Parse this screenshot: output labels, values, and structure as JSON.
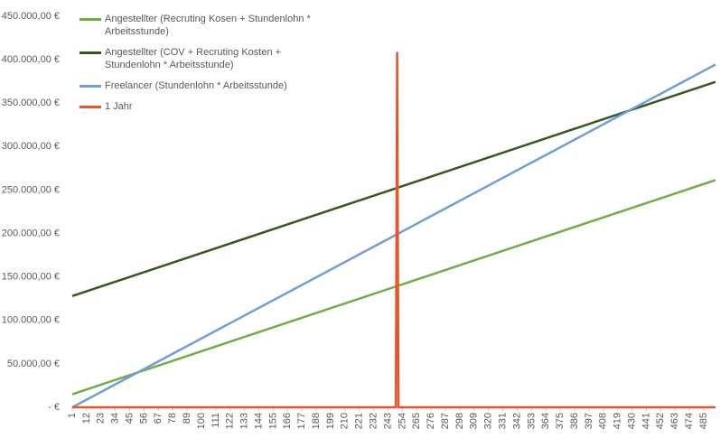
{
  "chart_data": {
    "type": "line",
    "x": [
      1,
      249,
      250,
      251,
      494
    ],
    "series": [
      {
        "name": "Angestellter (Recruting Kosen + Stundenlohn * Arbeitsstunde)",
        "color": "#70ad47",
        "values": [
          15000,
          139000,
          139500,
          140000,
          261500
        ]
      },
      {
        "name": "Angestellter (COV + Recruting Kosten + Stundenlohn * Arbeitsstunde)",
        "color": "#375623",
        "values": [
          128000,
          252000,
          252500,
          253000,
          374500
        ]
      },
      {
        "name": "Freelancer (Stundenlohn * Arbeitsstunde)",
        "color": "#6f9fd6",
        "values": [
          0,
          198400,
          199200,
          200000,
          394400
        ]
      },
      {
        "name": "1 Jahr",
        "color": "#e8542b",
        "values": [
          0,
          0,
          408000,
          0,
          0
        ]
      }
    ],
    "xlim": [
      1,
      494
    ],
    "xticks": [
      1,
      12,
      23,
      34,
      45,
      56,
      67,
      78,
      89,
      100,
      111,
      122,
      133,
      144,
      155,
      166,
      177,
      188,
      199,
      210,
      221,
      232,
      243,
      254,
      265,
      276,
      287,
      298,
      309,
      320,
      331,
      342,
      353,
      364,
      375,
      386,
      397,
      408,
      419,
      430,
      441,
      452,
      463,
      474,
      485
    ],
    "ylim": [
      0,
      450000
    ],
    "yticks": [
      {
        "value": 0,
        "label": "-  €"
      },
      {
        "value": 50000,
        "label": "50.000,00 €"
      },
      {
        "value": 100000,
        "label": "100.000,00 €"
      },
      {
        "value": 150000,
        "label": "150.000,00 €"
      },
      {
        "value": 200000,
        "label": "200.000,00 €"
      },
      {
        "value": 250000,
        "label": "250.000,00 €"
      },
      {
        "value": 300000,
        "label": "300.000,00 €"
      },
      {
        "value": 350000,
        "label": "350.000,00 €"
      },
      {
        "value": 400000,
        "label": "400.000,00 €"
      },
      {
        "value": 450000,
        "label": "450.000,00 €"
      }
    ],
    "grid": false,
    "legend": "top-left"
  }
}
